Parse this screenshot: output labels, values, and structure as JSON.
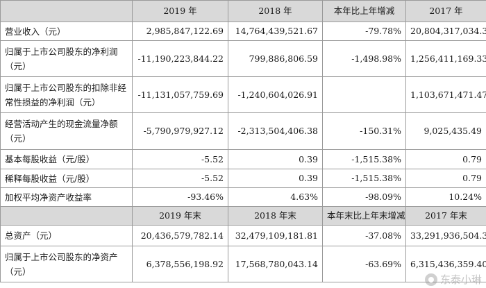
{
  "header1": [
    "",
    "2019 年",
    "2018 年",
    "本年比上年增减",
    "2017 年"
  ],
  "rows1": [
    {
      "label": "营业收入（元）",
      "v2019": "2,985,847,122.69",
      "v2018": "14,764,439,521.67",
      "change": "-79.78%",
      "v2017": "20,804,317,034.39"
    },
    {
      "label": "归属于上市公司股东的净利润（元）",
      "v2019": "-11,190,223,844.22",
      "v2018": "799,886,806.59",
      "change": "-1,498.98%",
      "v2017": "1,256,411,169.33"
    },
    {
      "label": "归属于上市公司股东的扣除非经常性损益的净利润（元）",
      "v2019": "-11,131,057,759.69",
      "v2018": "-1,240,604,026.91",
      "change": "",
      "v2017": "1,103,671,471.47"
    },
    {
      "label": "经营活动产生的现金流量净额（元）",
      "v2019": "-5,790,979,927.12",
      "v2018": "-2,313,504,406.38",
      "change": "-150.31%",
      "v2017": "9,025,435.49"
    },
    {
      "label": "基本每股收益（元/股）",
      "v2019": "-5.52",
      "v2018": "0.39",
      "change": "-1,515.38%",
      "v2017": "0.79"
    },
    {
      "label": "稀释每股收益（元/股）",
      "v2019": "-5.52",
      "v2018": "0.39",
      "change": "-1,515.38%",
      "v2017": "0.79"
    },
    {
      "label": "加权平均净资产收益率",
      "v2019": "-93.46%",
      "v2018": "4.63%",
      "change": "-98.09%",
      "v2017": "10.24%"
    }
  ],
  "header2": [
    "",
    "2019 年末",
    "2018 年末",
    "本年末比上年末增减",
    "2017 年末"
  ],
  "rows2": [
    {
      "label": "总资产（元）",
      "v2019": "20,436,579,782.14",
      "v2018": "32,479,109,181.81",
      "change": "-37.08%",
      "v2017": "33,291,936,504.34"
    },
    {
      "label": "归属于上市公司股东的净资产（元）",
      "v2019": "6,378,556,198.92",
      "v2018": "17,568,780,043.14",
      "change": "-63.69%",
      "v2017": "6,315,436,359.40"
    }
  ],
  "watermark": "东泰小琳"
}
